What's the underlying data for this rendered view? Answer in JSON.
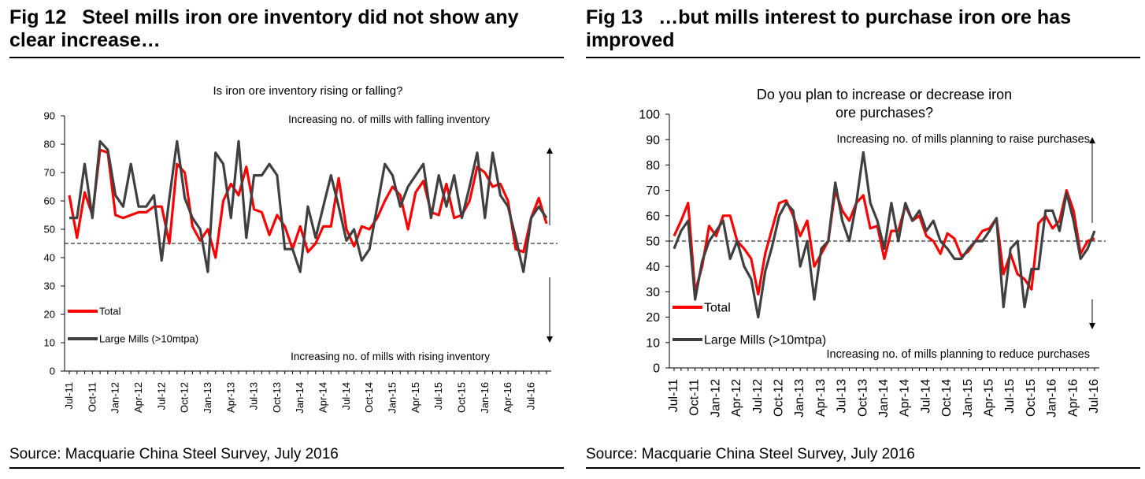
{
  "figures": [
    {
      "fig_label": "Fig 12",
      "title_text": "Steel mills iron ore inventory did not show any clear increase…",
      "source": "Source: Macquarie China Steel Survey, July 2016"
    },
    {
      "fig_label": "Fig 13",
      "title_text": "…but mills interest to purchase iron ore has improved",
      "source": "Source: Macquarie China Steel Survey, July 2016"
    }
  ],
  "chart_data": [
    {
      "type": "line",
      "title": "Is iron ore inventory rising or falling?",
      "ylim": [
        0,
        90
      ],
      "yticks": [
        0,
        10,
        20,
        30,
        40,
        50,
        60,
        70,
        80,
        90
      ],
      "reference_line": 45,
      "x_tick_labels": [
        "Jul-11",
        "Oct-11",
        "Jan-12",
        "Apr-12",
        "Jul-12",
        "Oct-12",
        "Jan-13",
        "Apr-13",
        "Jul-13",
        "Oct-13",
        "Jan-14",
        "Apr-14",
        "Jul-14",
        "Oct-14",
        "Jan-15",
        "Apr-15",
        "Jul-15",
        "Oct-15",
        "Jan-16",
        "Apr-16",
        "Jul-16"
      ],
      "annotation_top": "Increasing no. of mills with falling inventory",
      "annotation_bottom": "Increasing no. of mills with rising inventory",
      "legend_position": "bottom-left",
      "colors": {
        "Total": "#ff0000",
        "Large Mills (>10mtpa)": "#404040"
      },
      "series": [
        {
          "name": "Total",
          "values": [
            62,
            47,
            63,
            55,
            78,
            77,
            55,
            54,
            55,
            56,
            56,
            58,
            58,
            45,
            73,
            70,
            51,
            46,
            50,
            40,
            60,
            66,
            62,
            72,
            57,
            56,
            48,
            55,
            51,
            43,
            51,
            42,
            45,
            51,
            51,
            68,
            50,
            44,
            51,
            50,
            54,
            60,
            65,
            62,
            50,
            63,
            67,
            56,
            55,
            66,
            54,
            55,
            60,
            72,
            70,
            65,
            66,
            60,
            43,
            42,
            54,
            61,
            52
          ]
        },
        {
          "name": "Large Mills (>10mtpa)",
          "values": [
            54,
            54,
            73,
            54,
            81,
            78,
            62,
            58,
            73,
            58,
            58,
            62,
            39,
            61,
            81,
            61,
            54,
            50,
            35,
            77,
            73,
            54,
            81,
            47,
            69,
            69,
            73,
            69,
            43,
            43,
            35,
            58,
            47,
            58,
            69,
            58,
            46,
            50,
            39,
            43,
            58,
            73,
            69,
            58,
            65,
            69,
            73,
            54,
            69,
            58,
            69,
            54,
            65,
            77,
            54,
            77,
            62,
            58,
            47,
            35,
            54,
            58,
            54
          ]
        }
      ]
    },
    {
      "type": "line",
      "title": "Do you plan to increase or decrease iron ore purchases?",
      "ylim": [
        0,
        100
      ],
      "yticks": [
        0,
        10,
        20,
        30,
        40,
        50,
        60,
        70,
        80,
        90,
        100
      ],
      "reference_line": 50,
      "x_tick_labels": [
        "Jul-11",
        "Oct-11",
        "Jan-12",
        "Apr-12",
        "Jul-12",
        "Oct-12",
        "Jan-13",
        "Apr-13",
        "Jul-13",
        "Oct-13",
        "Jan-14",
        "Apr-14",
        "Jul-14",
        "Oct-14",
        "Jan-15",
        "Apr-15",
        "Jul-15",
        "Oct-15",
        "Jan-16",
        "Apr-16",
        "Jul-16"
      ],
      "annotation_top": "Increasing no. of mills planning to raise purchases",
      "annotation_bottom": "Increasing no. of mills planning to reduce purchases",
      "legend_position": "bottom-left",
      "colors": {
        "Total": "#ff0000",
        "Large Mills (>10mtpa)": "#404040"
      },
      "series": [
        {
          "name": "Total",
          "values": [
            52,
            58,
            65,
            30,
            40,
            56,
            52,
            60,
            60,
            50,
            47,
            43,
            29,
            45,
            55,
            65,
            66,
            60,
            52,
            58,
            40,
            45,
            50,
            70,
            62,
            58,
            65,
            68,
            55,
            56,
            43,
            54,
            54,
            64,
            58,
            60,
            52,
            50,
            45,
            53,
            51,
            44,
            46,
            50,
            54,
            55,
            59,
            37,
            45,
            37,
            35,
            31,
            57,
            60,
            55,
            58,
            70,
            62,
            45,
            50,
            51
          ]
        },
        {
          "name": "Large Mills (>10mtpa)",
          "values": [
            47,
            54,
            58,
            27,
            42,
            50,
            54,
            58,
            43,
            50,
            40,
            35,
            20,
            38,
            48,
            60,
            65,
            62,
            40,
            50,
            27,
            47,
            50,
            73,
            58,
            50,
            65,
            85,
            65,
            58,
            47,
            65,
            50,
            65,
            58,
            62,
            54,
            58,
            50,
            47,
            43,
            43,
            47,
            50,
            50,
            54,
            59,
            24,
            47,
            50,
            24,
            39,
            39,
            62,
            62,
            54,
            69,
            58,
            43,
            47,
            54
          ]
        }
      ]
    }
  ]
}
